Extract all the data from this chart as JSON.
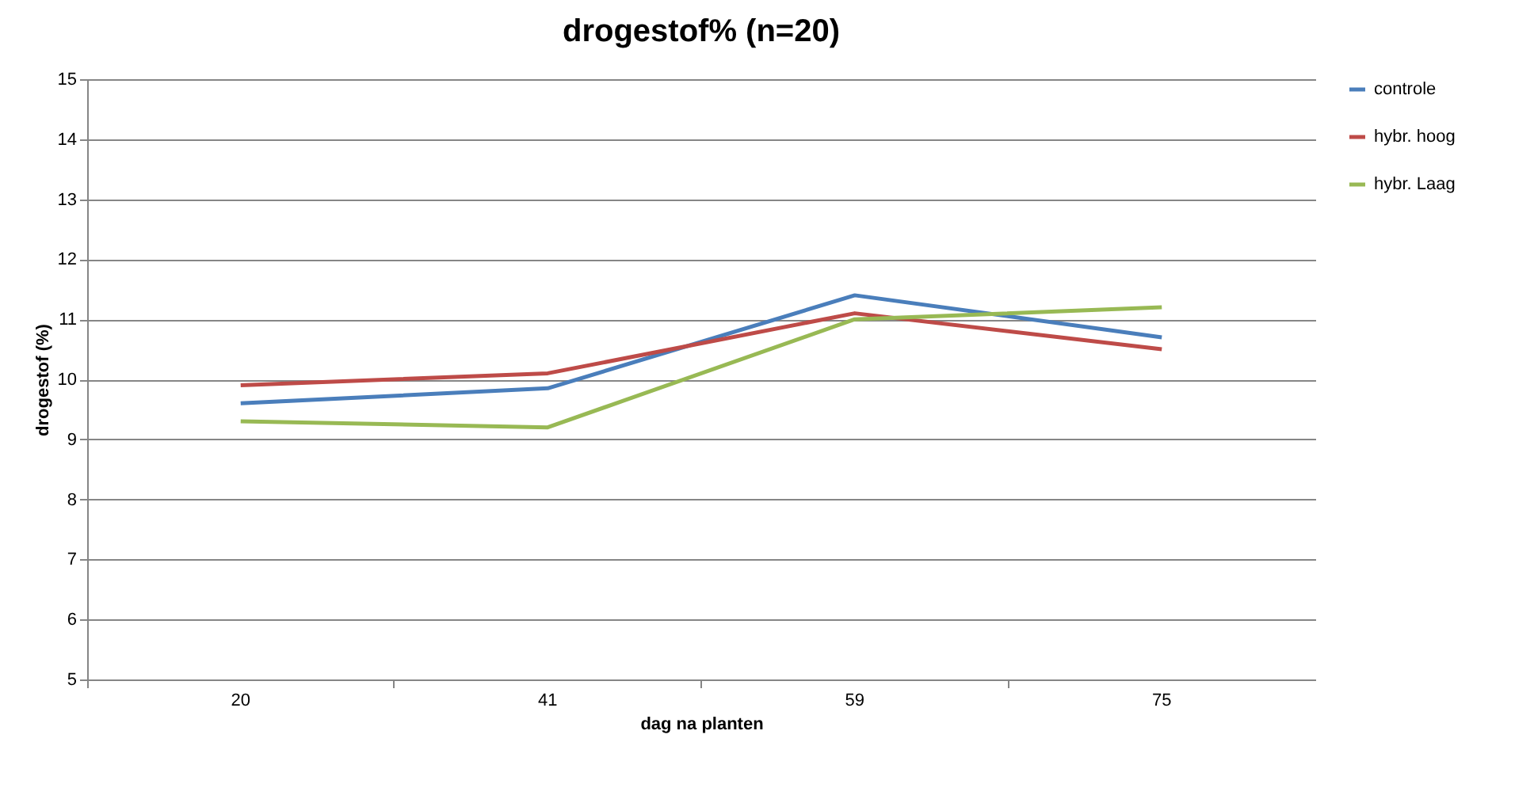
{
  "chart_data": {
    "type": "line",
    "title": "drogestof% (n=20)",
    "xlabel": "dag na planten",
    "ylabel": "drogestof (%)",
    "categories": [
      "20",
      "41",
      "59",
      "75"
    ],
    "series": [
      {
        "name": "controle",
        "color": "#4a7ebb",
        "values": [
          9.6,
          9.85,
          11.4,
          10.7
        ]
      },
      {
        "name": "hybr. hoog",
        "color": "#be4b48",
        "values": [
          9.9,
          10.1,
          11.1,
          10.5
        ]
      },
      {
        "name": "hybr. Laag",
        "color": "#98b954",
        "values": [
          9.3,
          9.2,
          11.0,
          11.2
        ]
      }
    ],
    "ylim": [
      5,
      15
    ],
    "yticks": [
      5,
      6,
      7,
      8,
      9,
      10,
      11,
      12,
      13,
      14,
      15
    ],
    "grid": "y",
    "legend": "right",
    "marker": "none",
    "line_style": "solid"
  }
}
